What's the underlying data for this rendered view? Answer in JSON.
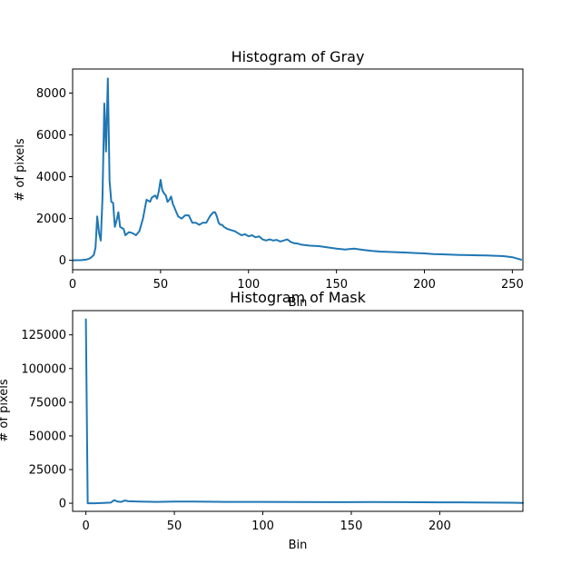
{
  "colors": {
    "line": "#1f77b4"
  },
  "chart_data": [
    {
      "type": "line",
      "title": "Histogram of Gray",
      "xlabel": "Bin",
      "ylabel": "# of pixels",
      "xlim": [
        0,
        256
      ],
      "ylim": [
        -450,
        9150
      ],
      "xticks": [
        0,
        50,
        100,
        150,
        200,
        250
      ],
      "yticks": [
        0,
        2000,
        4000,
        6000,
        8000
      ],
      "xticklabels": [
        "0",
        "50",
        "100",
        "150",
        "200",
        "250"
      ],
      "yticklabels": [
        "0",
        "2000",
        "4000",
        "6000",
        "8000"
      ],
      "grid": false,
      "series": [
        {
          "x": [
            0,
            5,
            8,
            10,
            12,
            13,
            14,
            15,
            16,
            17,
            18,
            19,
            20,
            21,
            22,
            23,
            24,
            25,
            26,
            27,
            28,
            29,
            30,
            32,
            34,
            36,
            38,
            40,
            42,
            44,
            45,
            46,
            47,
            48,
            49,
            50,
            51,
            52,
            53,
            54,
            55,
            56,
            57,
            58,
            59,
            60,
            62,
            64,
            66,
            68,
            70,
            72,
            74,
            76,
            78,
            80,
            81,
            82,
            83,
            84,
            85,
            86,
            88,
            90,
            92,
            94,
            96,
            98,
            100,
            102,
            104,
            106,
            108,
            110,
            112,
            114,
            116,
            118,
            120,
            122,
            124,
            126,
            128,
            130,
            135,
            140,
            145,
            150,
            155,
            160,
            165,
            170,
            175,
            180,
            185,
            190,
            195,
            200,
            205,
            210,
            215,
            220,
            225,
            230,
            235,
            240,
            245,
            250,
            253,
            255
          ],
          "y": [
            0,
            10,
            40,
            100,
            250,
            600,
            2100,
            1300,
            950,
            3000,
            7500,
            5200,
            8700,
            3800,
            2800,
            2750,
            1600,
            1900,
            2300,
            1600,
            1550,
            1500,
            1200,
            1350,
            1300,
            1200,
            1400,
            2000,
            2900,
            2800,
            3000,
            3050,
            3100,
            2950,
            3300,
            3850,
            3350,
            3200,
            3100,
            2800,
            2900,
            3050,
            2700,
            2500,
            2300,
            2100,
            2000,
            2150,
            2150,
            1800,
            1800,
            1700,
            1800,
            1800,
            2100,
            2300,
            2300,
            2100,
            1800,
            1700,
            1700,
            1600,
            1500,
            1450,
            1400,
            1300,
            1200,
            1250,
            1150,
            1200,
            1100,
            1150,
            1000,
            950,
            1000,
            950,
            980,
            900,
            950,
            1000,
            880,
            820,
            800,
            750,
            700,
            680,
            620,
            560,
            520,
            560,
            500,
            450,
            420,
            400,
            390,
            370,
            350,
            330,
            300,
            290,
            270,
            260,
            250,
            240,
            230,
            220,
            200,
            150,
            80,
            30
          ]
        }
      ]
    },
    {
      "type": "line",
      "title": "Histogram of Mask",
      "xlabel": "Bin",
      "ylabel": "# of pixels",
      "xlim": [
        -7.5,
        247
      ],
      "ylim": [
        -6000,
        143000
      ],
      "xticks": [
        0,
        50,
        100,
        150,
        200
      ],
      "yticks": [
        0,
        25000,
        50000,
        75000,
        100000,
        125000
      ],
      "xticklabels": [
        "0",
        "50",
        "100",
        "150",
        "200"
      ],
      "yticklabels": [
        "0",
        "25000",
        "50000",
        "75000",
        "100000",
        "125000"
      ],
      "grid": false,
      "series": [
        {
          "x": [
            0,
            1,
            5,
            10,
            14,
            16,
            18,
            20,
            22,
            24,
            30,
            40,
            50,
            60,
            80,
            100,
            120,
            140,
            160,
            180,
            200,
            220,
            240,
            247
          ],
          "y": [
            136500,
            0,
            0,
            200,
            500,
            2300,
            1200,
            1000,
            2000,
            1500,
            1200,
            1000,
            1300,
            1200,
            1000,
            1000,
            900,
            800,
            900,
            800,
            700,
            600,
            400,
            300
          ]
        }
      ]
    }
  ]
}
